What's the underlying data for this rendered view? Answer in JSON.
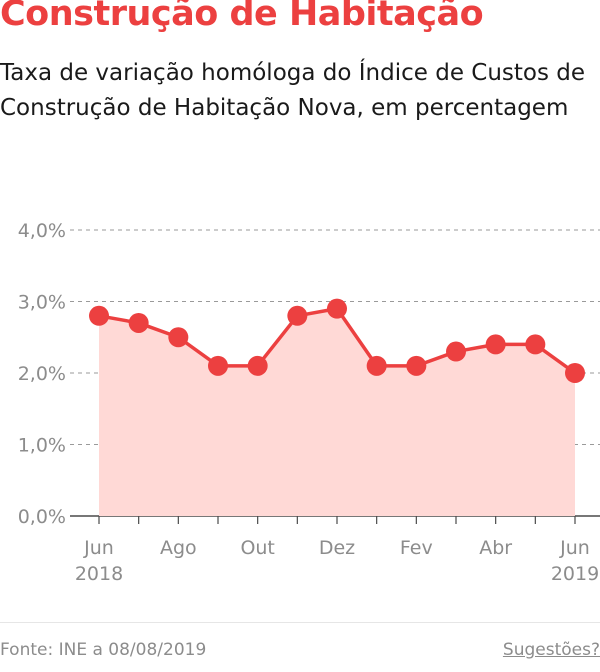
{
  "header": {
    "title": "Construção de Habitação",
    "subtitle": "Taxa de variação homóloga do Índice de Custos de Construção de Habitação Nova, em percentagem"
  },
  "footer": {
    "source": "Fonte: INE a 08/08/2019",
    "suggestions": "Sugestões?"
  },
  "colors": {
    "accent": "#ec4040",
    "area_fill": "#ffd9d6",
    "grid": "#9a9a9a",
    "tick_text": "#8c8c8c"
  },
  "chart_data": {
    "type": "area",
    "title": "Construção de Habitação",
    "subtitle": "Taxa de variação homóloga do Índice de Custos de Construção de Habitação Nova, em percentagem",
    "x": [
      "2018-06",
      "2018-07",
      "2018-08",
      "2018-09",
      "2018-10",
      "2018-11",
      "2018-12",
      "2019-01",
      "2019-02",
      "2019-03",
      "2019-04",
      "2019-05",
      "2019-06"
    ],
    "series": [
      {
        "values": [
          2.8,
          2.7,
          2.5,
          2.1,
          2.1,
          2.8,
          2.9,
          2.1,
          2.1,
          2.3,
          2.4,
          2.4,
          2.0
        ]
      }
    ],
    "ylim": [
      0,
      4
    ],
    "y_ticks": [
      0,
      1,
      2,
      3,
      4
    ],
    "y_tick_labels": [
      "0,0%",
      "1,0%",
      "2,0%",
      "3,0%",
      "4,0%"
    ],
    "x_tick_labels": [
      {
        "index": 0,
        "label": "Jun",
        "sublabel": "2018"
      },
      {
        "index": 2,
        "label": "Ago",
        "sublabel": ""
      },
      {
        "index": 4,
        "label": "Out",
        "sublabel": ""
      },
      {
        "index": 6,
        "label": "Dez",
        "sublabel": ""
      },
      {
        "index": 8,
        "label": "Fev",
        "sublabel": ""
      },
      {
        "index": 10,
        "label": "Abr",
        "sublabel": ""
      },
      {
        "index": 12,
        "label": "Jun",
        "sublabel": "2019"
      }
    ],
    "grid": true,
    "legend": "none"
  }
}
